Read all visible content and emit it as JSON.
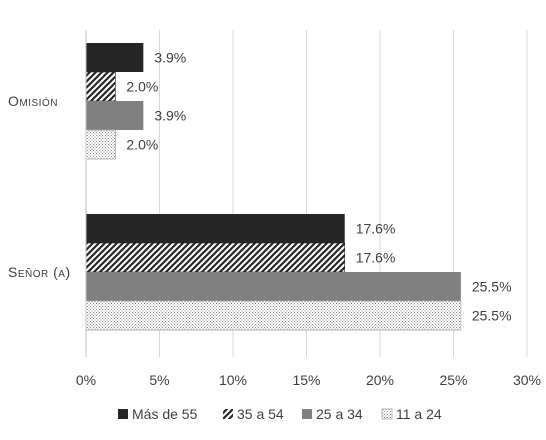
{
  "chart_data": {
    "type": "bar",
    "orientation": "horizontal",
    "categories": [
      "Omisión",
      "Señor (a)"
    ],
    "series": [
      {
        "name": "Más de 55",
        "values": [
          3.9,
          17.6
        ],
        "labels": [
          "3.9%",
          "17.6%"
        ],
        "color": "#262626",
        "pattern": "solid"
      },
      {
        "name": "35 a 54",
        "values": [
          2.0,
          17.6
        ],
        "labels": [
          "2.0%",
          "17.6%"
        ],
        "color": "#262626",
        "pattern": "diagonal-hatch"
      },
      {
        "name": "25 a 34",
        "values": [
          3.9,
          25.5
        ],
        "labels": [
          "3.9%",
          "25.5%"
        ],
        "color": "#808080",
        "pattern": "solid"
      },
      {
        "name": "11 a 24",
        "values": [
          2.0,
          25.5
        ],
        "labels": [
          "2.0%",
          "25.5%"
        ],
        "color": "#bfbfbf",
        "pattern": "dots"
      }
    ],
    "xlim": [
      0,
      30
    ],
    "xticks": [
      "0%",
      "5%",
      "10%",
      "15%",
      "20%",
      "25%",
      "30%"
    ],
    "grid": true,
    "legend_position": "bottom"
  }
}
